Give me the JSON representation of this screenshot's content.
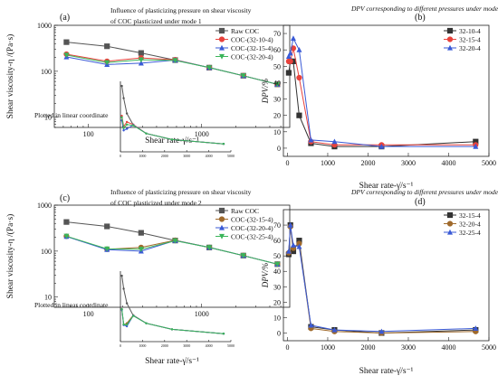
{
  "chart_data": [
    {
      "id": "a",
      "type": "line",
      "panel_label": "(a)",
      "title_lines": [
        "Influence of plasticizing pressure on shear viscosity",
        "of COC plasticized under mode 1"
      ],
      "xlabel": "Shear rate-γ̇/s⁻¹",
      "ylabel": "Shear viscosity-η /(Pa·s)",
      "yscale": "log",
      "xscale": "log",
      "xlim": [
        50,
        6000
      ],
      "ylim": [
        6,
        1000
      ],
      "x_ticks": [
        "100",
        "1000"
      ],
      "y_ticks": [
        "10",
        "100",
        "1000"
      ],
      "annotation": "Plotted in linear coordinate",
      "legend_position": "top-right",
      "x": [
        64,
        146,
        292,
        584,
        1168,
        2335,
        4670
      ],
      "series": [
        {
          "name": "Raw COC",
          "color": "#555555",
          "marker": "square",
          "values": [
            430,
            350,
            250,
            175,
            120,
            80,
            52
          ]
        },
        {
          "name": "COC-(32-10-4)",
          "color": "#e8423c",
          "marker": "circle",
          "values": [
            235,
            165,
            195,
            178,
            120,
            80,
            52
          ]
        },
        {
          "name": "COC-(32-15-4)",
          "color": "#3a5ad6",
          "marker": "triangle-up",
          "values": [
            205,
            140,
            150,
            175,
            120,
            80,
            52
          ]
        },
        {
          "name": "COC-(32-20-4)",
          "color": "#3bb55a",
          "marker": "triangle-down",
          "values": [
            225,
            155,
            178,
            172,
            120,
            80,
            52
          ]
        }
      ],
      "inset": {
        "x_ticks": [
          "0",
          "1000",
          "2000",
          "3000",
          "4000",
          "5000"
        ],
        "xlim": [
          0,
          5000
        ],
        "ylim": [
          0,
          460
        ]
      }
    },
    {
      "id": "b",
      "type": "line",
      "panel_label": "(b)",
      "title": "DPV corresponding to different pressures under mode 1",
      "xlabel": "Shear rate-γ̇/s⁻¹",
      "ylabel": "DPV/%",
      "xlim": [
        -100,
        5000
      ],
      "ylim": [
        -5,
        75
      ],
      "x_ticks": [
        "0",
        "1000",
        "2000",
        "3000",
        "4000",
        "5000"
      ],
      "y_ticks": [
        "0",
        "10",
        "20",
        "30",
        "40",
        "50",
        "60",
        "70"
      ],
      "legend_position": "top-right",
      "x": [
        32,
        73,
        146,
        292,
        584,
        1168,
        2335,
        4670
      ],
      "series": [
        {
          "name": "32-10-4",
          "color": "#333333",
          "marker": "square",
          "values": [
            46,
            53,
            53,
            20,
            3,
            1,
            1,
            4
          ]
        },
        {
          "name": "32-15-4",
          "color": "#e8423c",
          "marker": "circle",
          "values": [
            53,
            53,
            61,
            43,
            4,
            2,
            2,
            2
          ]
        },
        {
          "name": "32-20-4",
          "color": "#3a5ad6",
          "marker": "triangle-up",
          "values": [
            56,
            58,
            67,
            60,
            5,
            4,
            1,
            1
          ]
        }
      ]
    },
    {
      "id": "c",
      "type": "line",
      "panel_label": "(c)",
      "title_lines": [
        "Influence of plasticizing pressure on shear viscosity",
        "of COC plasticized under mode 2"
      ],
      "xlabel": "Shear rate-γ̇/s⁻¹",
      "ylabel": "Shear viscosity-η /(Pa·s)",
      "yscale": "log",
      "xscale": "log",
      "xlim": [
        50,
        6000
      ],
      "ylim": [
        6,
        1000
      ],
      "x_ticks": [
        "100",
        "1000"
      ],
      "y_ticks": [
        "10",
        "100",
        "1000"
      ],
      "annotation": "Plotted in linear coordinate",
      "legend_position": "top-right",
      "x": [
        64,
        146,
        292,
        584,
        1168,
        2335,
        4670
      ],
      "series": [
        {
          "name": "Raw COC",
          "color": "#555555",
          "marker": "square",
          "values": [
            430,
            345,
            250,
            170,
            120,
            80,
            52
          ]
        },
        {
          "name": "COC-(32-15-4)",
          "color": "#a06a2c",
          "marker": "circle",
          "values": [
            210,
            110,
            120,
            172,
            120,
            80,
            52
          ]
        },
        {
          "name": "COC-(32-20-4)",
          "color": "#3a5ad6",
          "marker": "triangle-up",
          "values": [
            208,
            108,
            100,
            170,
            120,
            80,
            52
          ]
        },
        {
          "name": "COC-(32-25-4)",
          "color": "#3bb55a",
          "marker": "triangle-down",
          "values": [
            212,
            112,
            110,
            168,
            120,
            80,
            52
          ]
        }
      ],
      "inset": {
        "x_ticks": [
          "0",
          "1000",
          "2000",
          "3000",
          "4000",
          "5000"
        ],
        "xlim": [
          0,
          5000
        ],
        "ylim": [
          0,
          460
        ]
      }
    },
    {
      "id": "d",
      "type": "line",
      "panel_label": "(d)",
      "title": "DPV corresponding to different pressures under mode 2",
      "xlabel": "Shear rate-γ̇/s⁻¹",
      "ylabel": "DPV/%",
      "xlim": [
        -100,
        5000
      ],
      "ylim": [
        -5,
        80
      ],
      "x_ticks": [
        "0",
        "1000",
        "2000",
        "3000",
        "4000",
        "5000"
      ],
      "y_ticks": [
        "0",
        "10",
        "20",
        "30",
        "40",
        "50",
        "60",
        "70"
      ],
      "legend_position": "top-right",
      "x": [
        32,
        73,
        146,
        292,
        584,
        1168,
        2335,
        4670
      ],
      "series": [
        {
          "name": "32-15-4",
          "color": "#333333",
          "marker": "square",
          "values": [
            51,
            70,
            53,
            60,
            4,
            2,
            0,
            2
          ]
        },
        {
          "name": "32-20-4",
          "color": "#a06a2c",
          "marker": "circle",
          "values": [
            52,
            69,
            55,
            58,
            3,
            1,
            0,
            1
          ]
        },
        {
          "name": "32-25-4",
          "color": "#3a5ad6",
          "marker": "triangle-up",
          "values": [
            53,
            70,
            57,
            56,
            5,
            2,
            1,
            3
          ]
        }
      ]
    }
  ]
}
